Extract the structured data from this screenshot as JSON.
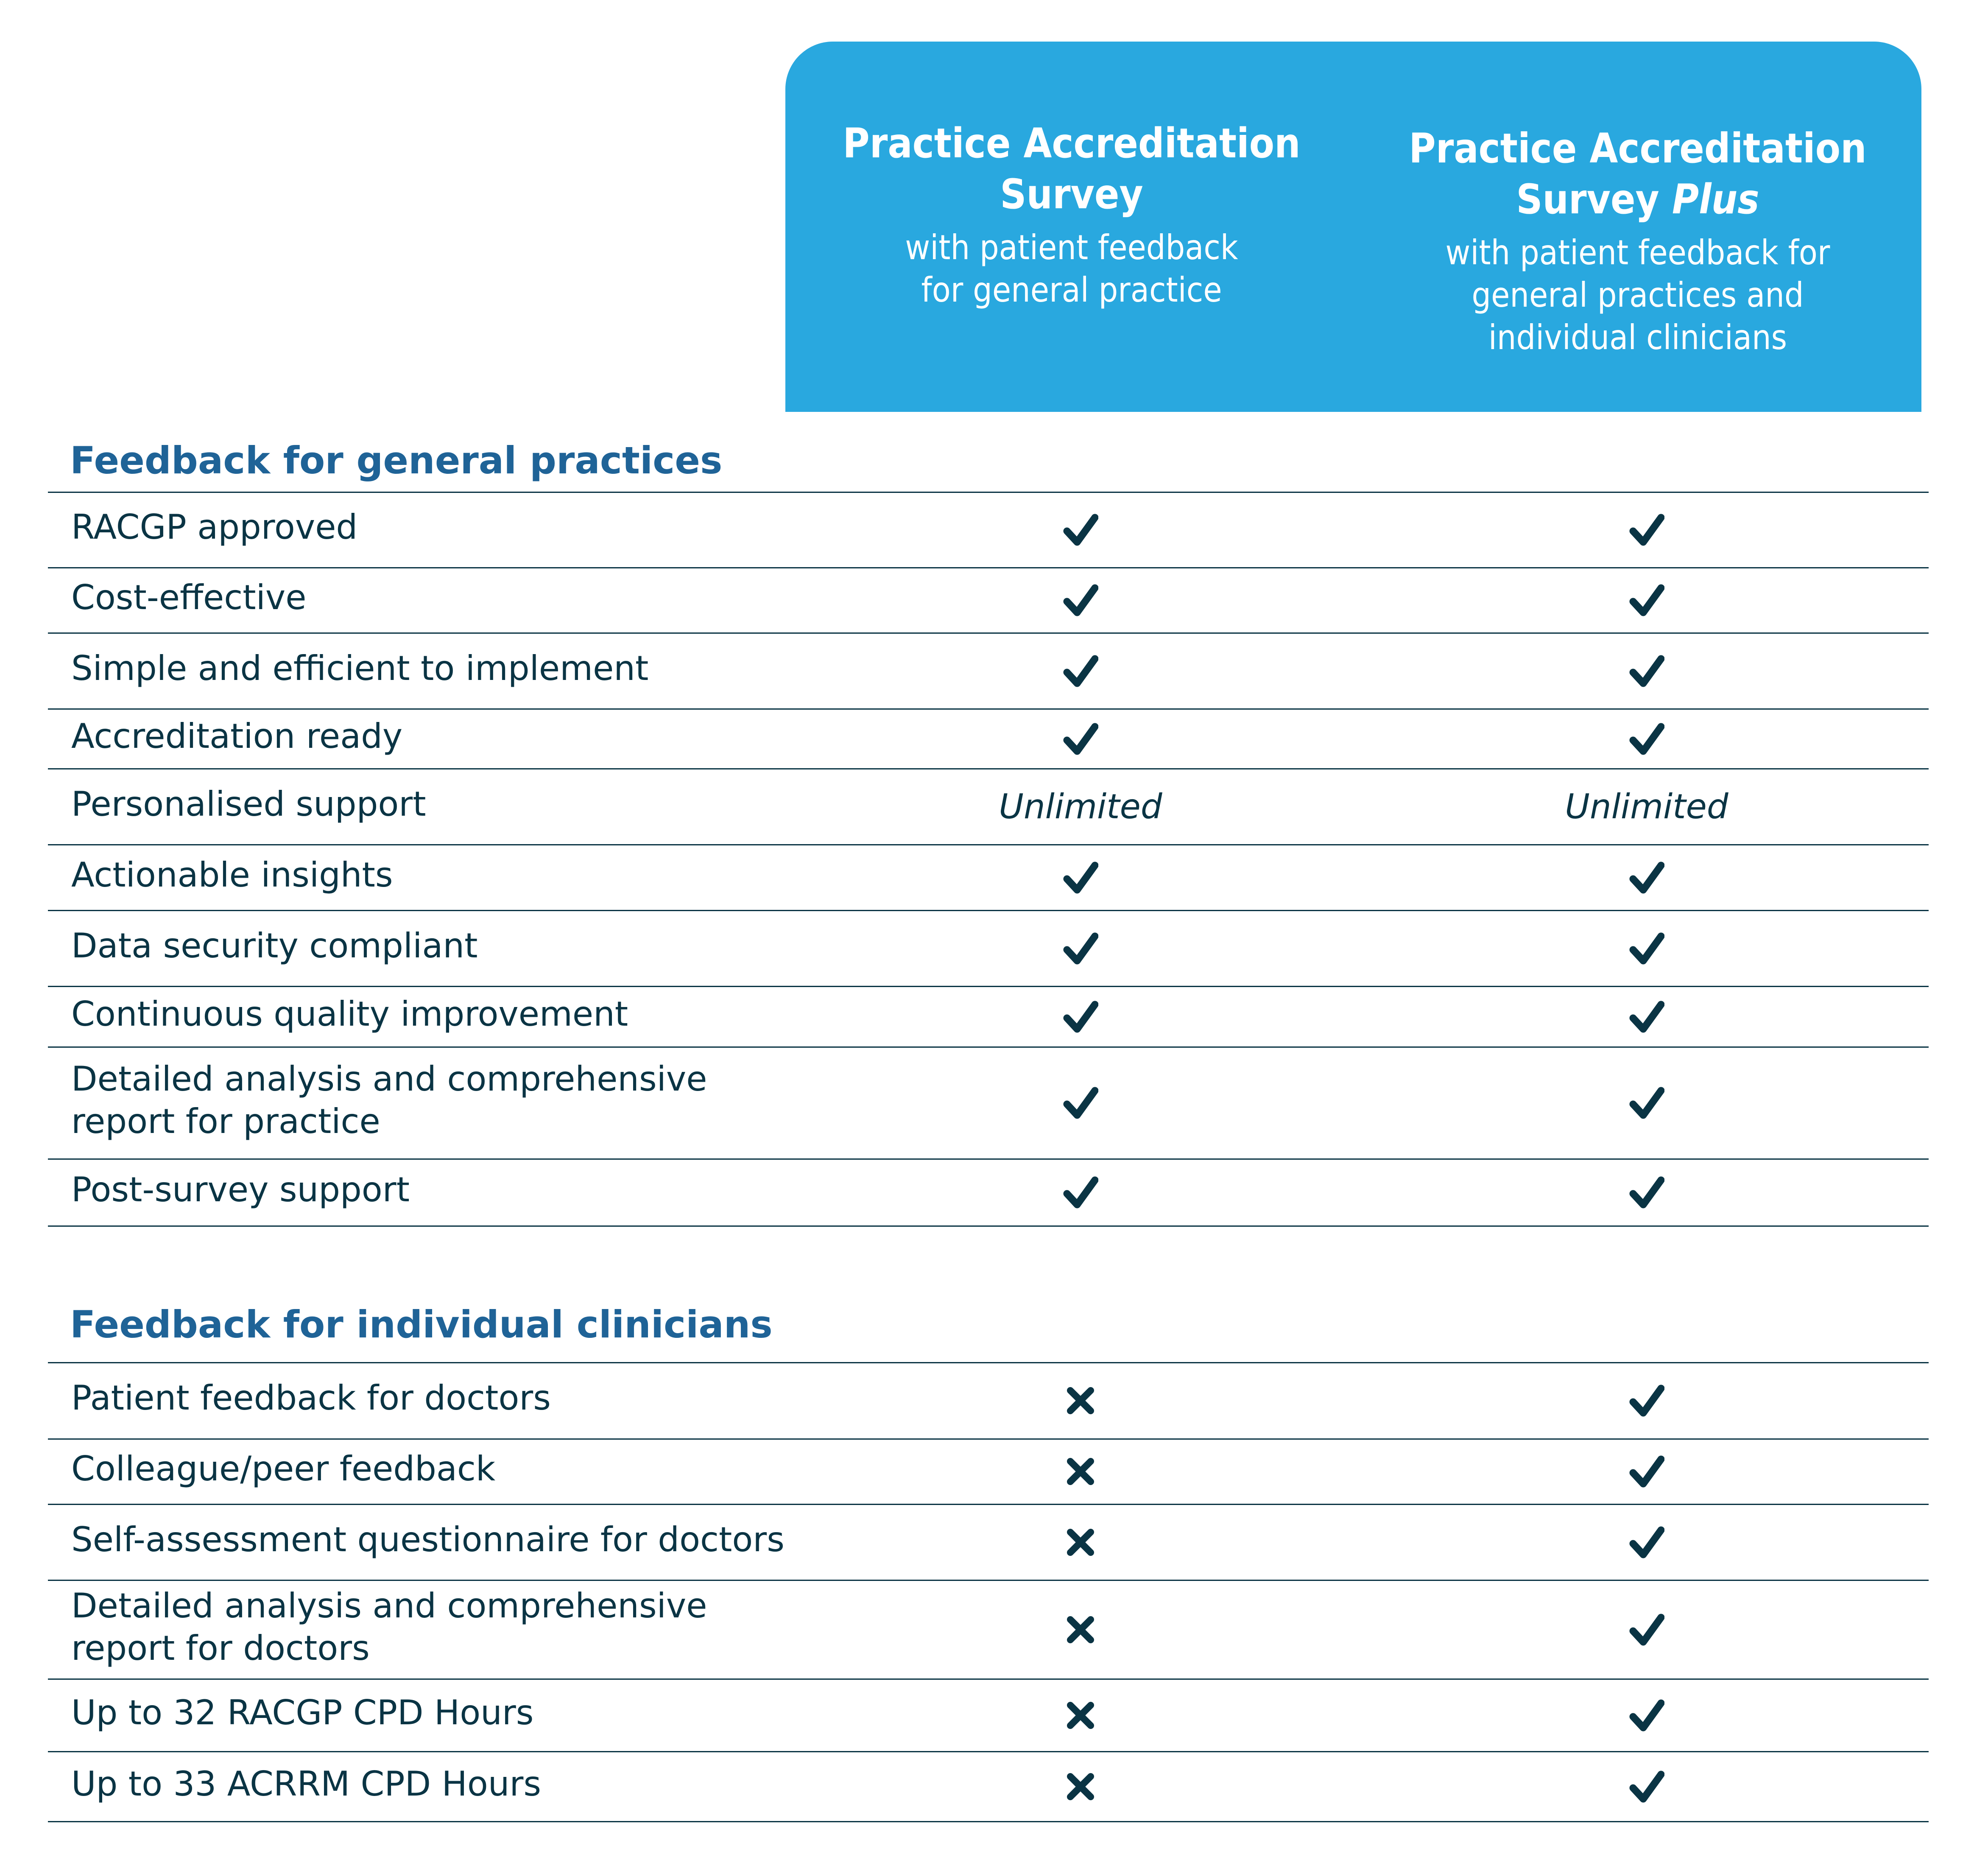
{
  "header": {
    "plans": [
      {
        "title_line1": "Practice Accreditation",
        "title_line2": "Survey",
        "title_emphasis": "",
        "subtitle": "with patient feedback for general practice"
      },
      {
        "title_line1": "Practice Accreditation",
        "title_line2": "Survey",
        "title_emphasis": "Plus",
        "subtitle": "with patient feedback for general practices and individual clinicians"
      }
    ],
    "accent_color": "#29a8df"
  },
  "colors": {
    "section_title": "#1f6397",
    "text": "#0a3444",
    "rule": "#0a3444"
  },
  "sections": [
    {
      "title": "Feedback for general practices",
      "rows": [
        {
          "label": "RACGP approved",
          "plan1": "check",
          "plan2": "check"
        },
        {
          "label": "Cost-effective",
          "plan1": "check",
          "plan2": "check"
        },
        {
          "label": "Simple and efficient to implement",
          "plan1": "check",
          "plan2": "check"
        },
        {
          "label": "Accreditation ready",
          "plan1": "check",
          "plan2": "check"
        },
        {
          "label": "Personalised support",
          "plan1": "Unlimited",
          "plan2": "Unlimited"
        },
        {
          "label": "Actionable insights",
          "plan1": "check",
          "plan2": "check"
        },
        {
          "label": "Data security compliant",
          "plan1": "check",
          "plan2": "check"
        },
        {
          "label": "Continuous quality improvement",
          "plan1": "check",
          "plan2": "check"
        },
        {
          "label": "Detailed analysis and comprehensive\nreport for practice",
          "plan1": "check",
          "plan2": "check"
        },
        {
          "label": "Post-survey support",
          "plan1": "check",
          "plan2": "check"
        }
      ]
    },
    {
      "title": "Feedback for individual clinicians",
      "rows": [
        {
          "label": "Patient feedback for doctors",
          "plan1": "cross",
          "plan2": "check"
        },
        {
          "label": "Colleague/peer feedback",
          "plan1": "cross",
          "plan2": "check"
        },
        {
          "label": "Self-assessment questionnaire for doctors",
          "plan1": "cross",
          "plan2": "check"
        },
        {
          "label": "Detailed analysis and comprehensive\nreport for doctors",
          "plan1": "cross",
          "plan2": "check"
        },
        {
          "label": "Up to 32 RACGP CPD Hours",
          "plan1": "cross",
          "plan2": "check"
        },
        {
          "label": "Up to 33 ACRRM CPD Hours",
          "plan1": "cross",
          "plan2": "check"
        }
      ]
    }
  ]
}
